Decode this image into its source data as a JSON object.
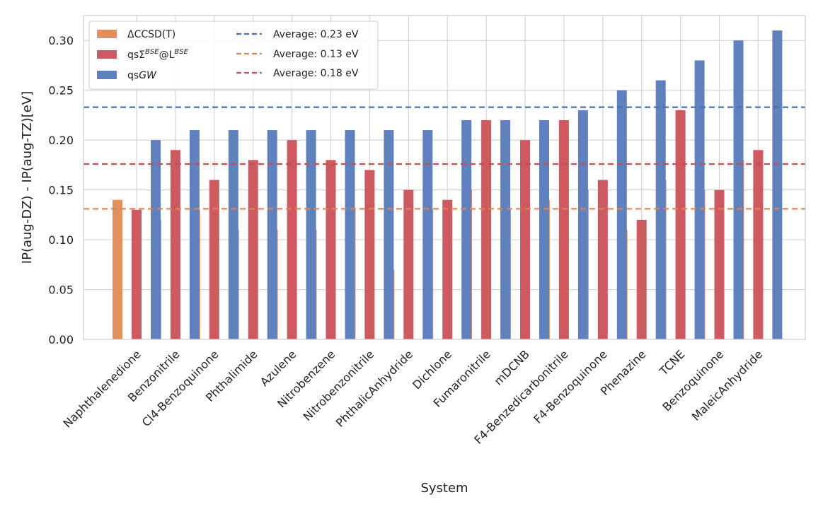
{
  "chart_data": {
    "type": "bar",
    "title": "",
    "xlabel": "System",
    "ylabel": "IP(aug-DZ) - IP(aug-TZ)[eV]",
    "ylim": [
      0,
      0.325
    ],
    "yticks": [
      "0.00",
      "0.05",
      "0.10",
      "0.15",
      "0.20",
      "0.25",
      "0.30"
    ],
    "grid": true,
    "legend_position": "top-left",
    "categories": [
      "Naphthalenedione",
      "Benzonitrile",
      "Cl4-Benzoquinone",
      "Phthalimide",
      "Azulene",
      "Nitrobenzene",
      "Nitrobenzonitrile",
      "PhthalicAnhydride",
      "Dichlone",
      "Fumaronitrile",
      "mDCNB",
      "F4-Benzedicarbonitrile",
      "F4-Benzoquinone",
      "Phenazine",
      "TCNE",
      "Benzoquinone",
      "MaleicAnhydride"
    ],
    "series": [
      {
        "name": "ΔCCSD(T)",
        "color": "#e1915f",
        "values": [
          0.14,
          0.12,
          0.13,
          0.11,
          0.11,
          0.11,
          0.13,
          0.07,
          0.13,
          0.15,
          0.13,
          0.14,
          0.15,
          0.11,
          0.16,
          0.15,
          0.18
        ]
      },
      {
        "name_prefix": "qsΣ",
        "name_sup1": "BSE",
        "name_mid": "@L",
        "name_sup2": "BSE",
        "color": "#cc5a60",
        "values": [
          0.13,
          0.19,
          0.16,
          0.18,
          0.2,
          0.18,
          0.17,
          0.15,
          0.14,
          0.22,
          0.2,
          0.22,
          0.16,
          0.12,
          0.23,
          0.15,
          0.19
        ]
      },
      {
        "name_prefix": "qs",
        "name_italic": "GW",
        "color": "#5f81bd",
        "values": [
          0.2,
          0.21,
          0.21,
          0.21,
          0.21,
          0.21,
          0.21,
          0.21,
          0.22,
          0.22,
          0.22,
          0.23,
          0.25,
          0.26,
          0.28,
          0.3,
          0.31
        ]
      }
    ],
    "averages": [
      {
        "label": "Average: 0.23 eV",
        "value": 0.233,
        "color": "#4a6db3"
      },
      {
        "label": "Average: 0.13 eV",
        "value": 0.131,
        "color": "#dd8452"
      },
      {
        "label": "Average: 0.18 eV",
        "value": 0.176,
        "color": "#c44e52"
      }
    ]
  }
}
